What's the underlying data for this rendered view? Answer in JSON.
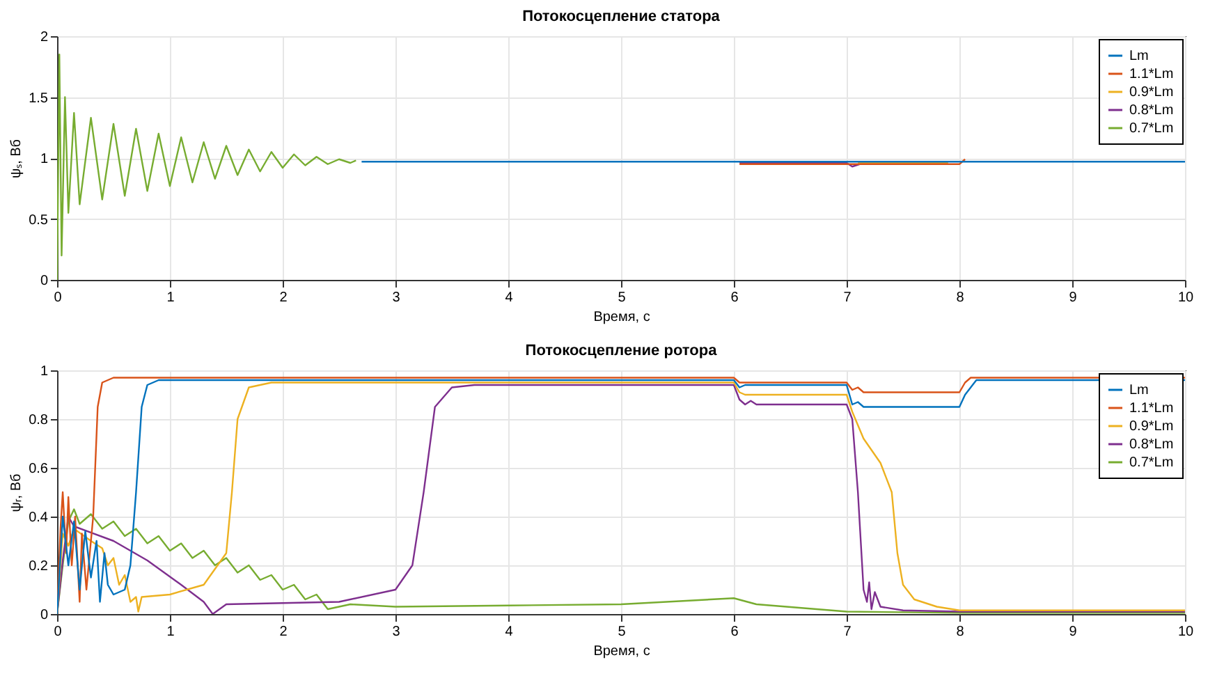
{
  "chart_data": [
    {
      "type": "line",
      "title": "Потокосцепление статора",
      "xlabel": "Время, с",
      "ylabel": "ψₛ, Вб",
      "xlim": [
        0,
        10
      ],
      "xticks": [
        0,
        1,
        2,
        3,
        4,
        5,
        6,
        7,
        8,
        9,
        10
      ],
      "ylim": [
        0,
        2
      ],
      "yticks": [
        {
          "value": 0,
          "label": "0"
        },
        0.5,
        {
          "value": 1,
          "label": "1"
        },
        1.5,
        {
          "value": 2,
          "label": "2"
        }
      ],
      "grid": true,
      "legend": "top right",
      "line_style": "solid",
      "marker": "none",
      "series": [
        {
          "name": "Lm",
          "color": "#0072bd",
          "x": [
            2.7,
            10
          ],
          "values": [
            0.97,
            0.97
          ]
        },
        {
          "name": "1.1*Lm",
          "color": "#d95319",
          "x": [
            6.05,
            8,
            8.05
          ],
          "values": [
            0.95,
            0.95,
            0.99
          ]
        },
        {
          "name": "0.9*Lm",
          "color": "#edb120",
          "x": [
            7.1,
            7.9
          ],
          "values": [
            0.96,
            0.96
          ]
        },
        {
          "name": "0.8*Lm",
          "color": "#7e2f8e",
          "x": [
            6.05,
            7.0,
            7.05,
            7.15
          ],
          "values": [
            0.96,
            0.96,
            0.93,
            0.96
          ]
        },
        {
          "name": "0.7*Lm",
          "color": "#77ac30",
          "x": [
            0,
            0.02,
            0.04,
            0.07,
            0.1,
            0.15,
            0.2,
            0.3,
            0.4,
            0.5,
            0.6,
            0.7,
            0.8,
            0.9,
            1.0,
            1.1,
            1.2,
            1.3,
            1.4,
            1.5,
            1.6,
            1.7,
            1.8,
            1.9,
            2.0,
            2.1,
            2.2,
            2.3,
            2.4,
            2.5,
            2.6,
            2.65
          ],
          "values": [
            0,
            1.85,
            0.2,
            1.5,
            0.55,
            1.37,
            0.62,
            1.33,
            0.66,
            1.28,
            0.69,
            1.24,
            0.73,
            1.2,
            0.77,
            1.17,
            0.8,
            1.13,
            0.83,
            1.1,
            0.86,
            1.07,
            0.89,
            1.05,
            0.92,
            1.03,
            0.94,
            1.01,
            0.95,
            0.99,
            0.96,
            0.98
          ]
        }
      ]
    },
    {
      "type": "line",
      "title": "Потокосцепление ротора",
      "xlabel": "Время, с",
      "ylabel": "ψᵣ, Вб",
      "xlim": [
        0,
        10
      ],
      "xticks": [
        0,
        1,
        2,
        3,
        4,
        5,
        6,
        7,
        8,
        9,
        10
      ],
      "ylim": [
        0,
        1
      ],
      "yticks": [
        {
          "value": 0,
          "label": "0"
        },
        0.2,
        0.4,
        0.6,
        0.8,
        {
          "value": 1,
          "label": "1"
        }
      ],
      "grid": true,
      "legend": "top right",
      "line_style": "solid",
      "marker": "none",
      "series": [
        {
          "name": "Lm",
          "color": "#0072bd",
          "x": [
            0,
            0.05,
            0.1,
            0.15,
            0.2,
            0.25,
            0.3,
            0.35,
            0.38,
            0.42,
            0.45,
            0.5,
            0.6,
            0.65,
            0.7,
            0.75,
            0.8,
            0.9,
            6,
            6.05,
            6.1,
            7,
            7.05,
            7.1,
            7.15,
            8,
            8.05,
            8.15,
            10
          ],
          "values": [
            0,
            0.4,
            0.2,
            0.38,
            0.1,
            0.34,
            0.15,
            0.3,
            0.05,
            0.25,
            0.12,
            0.08,
            0.1,
            0.2,
            0.5,
            0.85,
            0.94,
            0.96,
            0.96,
            0.93,
            0.94,
            0.94,
            0.86,
            0.87,
            0.85,
            0.85,
            0.9,
            0.96,
            0.96
          ]
        },
        {
          "name": "1.1*Lm",
          "color": "#d95319",
          "x": [
            0,
            0.03,
            0.05,
            0.08,
            0.1,
            0.13,
            0.16,
            0.2,
            0.22,
            0.26,
            0.3,
            0.32,
            0.36,
            0.4,
            0.5,
            6,
            6.05,
            7,
            7.05,
            7.1,
            7.15,
            8,
            8.05,
            8.1,
            10
          ],
          "values": [
            0,
            0.35,
            0.5,
            0.25,
            0.48,
            0.2,
            0.4,
            0.05,
            0.33,
            0.1,
            0.3,
            0.4,
            0.85,
            0.95,
            0.97,
            0.97,
            0.95,
            0.95,
            0.92,
            0.93,
            0.91,
            0.91,
            0.95,
            0.97,
            0.97
          ]
        },
        {
          "name": "0.9*Lm",
          "color": "#edb120",
          "x": [
            0,
            0.05,
            0.1,
            0.15,
            0.3,
            0.4,
            0.45,
            0.5,
            0.55,
            0.6,
            0.65,
            0.7,
            0.72,
            0.75,
            1.0,
            1.3,
            1.5,
            1.55,
            1.6,
            1.7,
            1.9,
            6,
            6.05,
            6.1,
            7,
            7.05,
            7.15,
            7.3,
            7.4,
            7.45,
            7.5,
            7.6,
            7.8,
            8,
            10
          ],
          "values": [
            0,
            0.33,
            0.28,
            0.35,
            0.3,
            0.27,
            0.2,
            0.23,
            0.12,
            0.16,
            0.05,
            0.07,
            0.01,
            0.07,
            0.08,
            0.12,
            0.25,
            0.5,
            0.8,
            0.93,
            0.95,
            0.95,
            0.91,
            0.9,
            0.9,
            0.83,
            0.72,
            0.62,
            0.5,
            0.25,
            0.12,
            0.06,
            0.03,
            0.015,
            0.015
          ]
        },
        {
          "name": "0.8*Lm",
          "color": "#7e2f8e",
          "x": [
            0,
            0.05,
            0.1,
            0.15,
            0.5,
            0.8,
            1.1,
            1.3,
            1.38,
            1.5,
            2,
            2.5,
            3.0,
            3.15,
            3.25,
            3.35,
            3.5,
            3.7,
            6,
            6.05,
            6.1,
            6.15,
            6.2,
            6.3,
            7,
            7.05,
            7.1,
            7.15,
            7.18,
            7.2,
            7.22,
            7.25,
            7.3,
            7.5,
            8,
            10
          ],
          "values": [
            0,
            0.22,
            0.4,
            0.36,
            0.3,
            0.22,
            0.12,
            0.05,
            0.0,
            0.04,
            0.045,
            0.05,
            0.1,
            0.2,
            0.5,
            0.85,
            0.93,
            0.94,
            0.94,
            0.88,
            0.86,
            0.875,
            0.86,
            0.86,
            0.86,
            0.8,
            0.5,
            0.1,
            0.05,
            0.13,
            0.02,
            0.09,
            0.03,
            0.015,
            0.01,
            0.01
          ]
        },
        {
          "name": "0.7*Lm",
          "color": "#77ac30",
          "x": [
            0,
            0.05,
            0.1,
            0.15,
            0.2,
            0.3,
            0.4,
            0.5,
            0.6,
            0.7,
            0.8,
            0.9,
            1.0,
            1.1,
            1.2,
            1.3,
            1.4,
            1.5,
            1.6,
            1.7,
            1.8,
            1.9,
            2.0,
            2.1,
            2.2,
            2.3,
            2.4,
            2.6,
            3.0,
            4,
            5,
            6,
            6.2,
            7,
            8,
            10
          ],
          "values": [
            0,
            0.2,
            0.38,
            0.43,
            0.37,
            0.41,
            0.35,
            0.38,
            0.32,
            0.35,
            0.29,
            0.32,
            0.26,
            0.29,
            0.23,
            0.26,
            0.2,
            0.23,
            0.17,
            0.2,
            0.14,
            0.16,
            0.1,
            0.12,
            0.06,
            0.08,
            0.02,
            0.04,
            0.03,
            0.035,
            0.04,
            0.065,
            0.04,
            0.01,
            0.005,
            0.005
          ]
        }
      ]
    }
  ]
}
